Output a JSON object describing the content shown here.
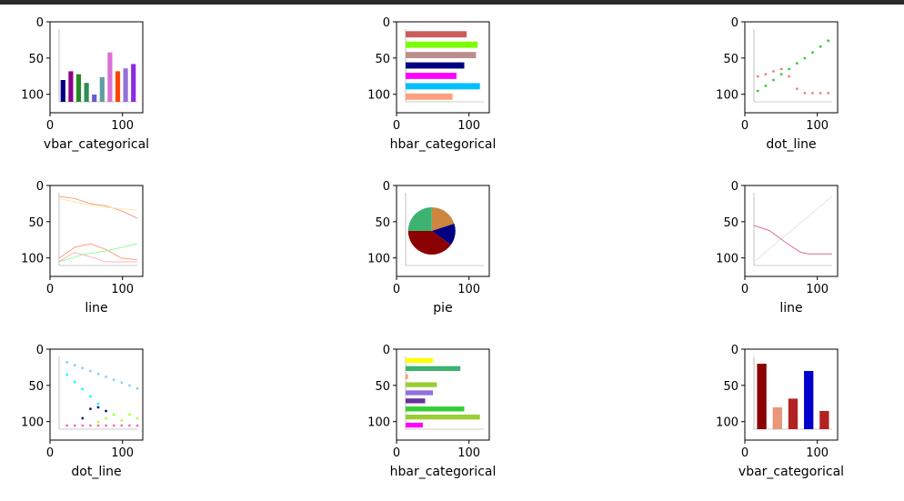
{
  "panels": [
    {
      "title": "vbar_categorical",
      "xticks": [
        "0",
        "100"
      ],
      "yticks": [
        "0",
        "50",
        "100"
      ],
      "thumb": {
        "type": "vbar",
        "bars": [
          {
            "value": 30,
            "color": "#000080"
          },
          {
            "value": 42,
            "color": "#8b008b"
          },
          {
            "value": 38,
            "color": "#228b22"
          },
          {
            "value": 26,
            "color": "#2e8b57"
          },
          {
            "value": 10,
            "color": "#6a5acd"
          },
          {
            "value": 34,
            "color": "#5f9ea0"
          },
          {
            "value": 68,
            "color": "#da70d6"
          },
          {
            "value": 42,
            "color": "#ff4500"
          },
          {
            "value": 46,
            "color": "#9370db"
          },
          {
            "value": 52,
            "color": "#8a2be2"
          }
        ]
      }
    },
    {
      "title": "hbar_categorical",
      "xticks": [
        "0",
        "100"
      ],
      "yticks": [
        "0",
        "50",
        "100"
      ],
      "thumb": {
        "type": "hbar",
        "bars": [
          {
            "value": 78,
            "color": "#cd5c5c"
          },
          {
            "value": 92,
            "color": "#7cfc00"
          },
          {
            "value": 90,
            "color": "#bc8f8f"
          },
          {
            "value": 75,
            "color": "#000080"
          },
          {
            "value": 65,
            "color": "#ff00ff"
          },
          {
            "value": 95,
            "color": "#00bfff"
          },
          {
            "value": 60,
            "color": "#ffa07a"
          }
        ]
      }
    },
    {
      "title": "dot_line",
      "xticks": [
        "0",
        "100"
      ],
      "yticks": [
        "0",
        "50",
        "100"
      ],
      "thumb": {
        "type": "dot",
        "series": [
          {
            "color": "#32cd32",
            "points": [
              [
                0.05,
                0.15
              ],
              [
                0.15,
                0.22
              ],
              [
                0.25,
                0.3
              ],
              [
                0.35,
                0.38
              ],
              [
                0.45,
                0.45
              ],
              [
                0.55,
                0.53
              ],
              [
                0.65,
                0.6
              ],
              [
                0.75,
                0.68
              ],
              [
                0.85,
                0.76
              ],
              [
                0.95,
                0.84
              ]
            ]
          },
          {
            "color": "#f08080",
            "points": [
              [
                0.05,
                0.35
              ],
              [
                0.15,
                0.38
              ],
              [
                0.25,
                0.42
              ],
              [
                0.35,
                0.45
              ],
              [
                0.45,
                0.35
              ],
              [
                0.55,
                0.18
              ],
              [
                0.65,
                0.12
              ],
              [
                0.75,
                0.12
              ],
              [
                0.85,
                0.12
              ],
              [
                0.95,
                0.12
              ]
            ]
          }
        ]
      }
    },
    {
      "title": "line",
      "xticks": [
        "0",
        "100"
      ],
      "yticks": [
        "0",
        "50",
        "100"
      ],
      "thumb": {
        "type": "line",
        "series": [
          {
            "color": "#f4a582",
            "points": [
              [
                0,
                0.95
              ],
              [
                0.2,
                0.92
              ],
              [
                0.4,
                0.85
              ],
              [
                0.6,
                0.82
              ],
              [
                0.8,
                0.75
              ],
              [
                1,
                0.65
              ]
            ]
          },
          {
            "color": "#ffe4b5",
            "points": [
              [
                0,
                0.92
              ],
              [
                0.3,
                0.85
              ],
              [
                0.6,
                0.8
              ],
              [
                1,
                0.76
              ]
            ]
          },
          {
            "color": "#ffa07a",
            "points": [
              [
                0,
                0.1
              ],
              [
                0.2,
                0.25
              ],
              [
                0.4,
                0.3
              ],
              [
                0.6,
                0.22
              ],
              [
                0.8,
                0.1
              ],
              [
                1,
                0.08
              ]
            ]
          },
          {
            "color": "#98fb98",
            "points": [
              [
                0,
                0.05
              ],
              [
                0.3,
                0.15
              ],
              [
                0.6,
                0.2
              ],
              [
                1,
                0.3
              ]
            ]
          },
          {
            "color": "#ffb6c1",
            "points": [
              [
                0,
                0.06
              ],
              [
                0.2,
                0.18
              ],
              [
                0.4,
                0.12
              ],
              [
                0.6,
                0.05
              ],
              [
                1,
                0.05
              ]
            ]
          }
        ]
      }
    },
    {
      "title": "pie",
      "xticks": [
        "0",
        "100"
      ],
      "yticks": [
        "0",
        "50",
        "100"
      ],
      "thumb": {
        "type": "pie",
        "slices": [
          {
            "value": 20,
            "color": "#cd853f"
          },
          {
            "value": 15,
            "color": "#000080"
          },
          {
            "value": 40,
            "color": "#8b0000"
          },
          {
            "value": 25,
            "color": "#3cb371"
          }
        ]
      }
    },
    {
      "title": "line",
      "xticks": [
        "0",
        "100"
      ],
      "yticks": [
        "0",
        "50",
        "100"
      ],
      "thumb": {
        "type": "line",
        "series": [
          {
            "color": "#e6e6e6",
            "points": [
              [
                0,
                0.05
              ],
              [
                1,
                0.95
              ]
            ]
          },
          {
            "color": "#db7093",
            "points": [
              [
                0,
                0.55
              ],
              [
                0.2,
                0.48
              ],
              [
                0.4,
                0.32
              ],
              [
                0.6,
                0.18
              ],
              [
                0.7,
                0.16
              ],
              [
                1,
                0.16
              ]
            ]
          }
        ]
      }
    },
    {
      "title": "dot_line",
      "xticks": [
        "0",
        "100"
      ],
      "yticks": [
        "0",
        "50",
        "100"
      ],
      "thumb": {
        "type": "dot",
        "series": [
          {
            "color": "#87cefa",
            "points": [
              [
                0.1,
                0.92
              ],
              [
                0.2,
                0.88
              ],
              [
                0.3,
                0.84
              ],
              [
                0.4,
                0.8
              ],
              [
                0.5,
                0.76
              ],
              [
                0.6,
                0.72
              ],
              [
                0.7,
                0.68
              ],
              [
                0.8,
                0.64
              ],
              [
                0.9,
                0.6
              ],
              [
                1,
                0.56
              ]
            ]
          },
          {
            "color": "#00ffff",
            "points": [
              [
                0.1,
                0.75
              ],
              [
                0.2,
                0.65
              ],
              [
                0.3,
                0.55
              ],
              [
                0.4,
                0.45
              ],
              [
                0.5,
                0.35
              ],
              [
                0.6,
                0.25
              ],
              [
                0.7,
                0.2
              ]
            ]
          },
          {
            "color": "#ff69b4",
            "points": [
              [
                0.1,
                0.05
              ],
              [
                0.2,
                0.05
              ],
              [
                0.3,
                0.05
              ],
              [
                0.4,
                0.05
              ],
              [
                0.5,
                0.05
              ],
              [
                0.6,
                0.05
              ],
              [
                0.7,
                0.05
              ],
              [
                0.8,
                0.05
              ],
              [
                0.9,
                0.05
              ],
              [
                1,
                0.05
              ]
            ]
          },
          {
            "color": "#191970",
            "points": [
              [
                0.3,
                0.15
              ],
              [
                0.4,
                0.28
              ],
              [
                0.5,
                0.3
              ],
              [
                0.6,
                0.25
              ]
            ]
          },
          {
            "color": "#adff2f",
            "points": [
              [
                0.5,
                0.1
              ],
              [
                0.6,
                0.15
              ],
              [
                0.7,
                0.2
              ],
              [
                0.8,
                0.12
              ],
              [
                0.9,
                0.2
              ],
              [
                1,
                0.15
              ]
            ]
          }
        ]
      }
    },
    {
      "title": "hbar_categorical",
      "xticks": [
        "0",
        "100"
      ],
      "yticks": [
        "0",
        "50",
        "100"
      ],
      "thumb": {
        "type": "hbar",
        "bars": [
          {
            "value": 35,
            "color": "#ffff00"
          },
          {
            "value": 70,
            "color": "#3cb371"
          },
          {
            "value": 3,
            "color": "#f4a460"
          },
          {
            "value": 40,
            "color": "#9acd32"
          },
          {
            "value": 35,
            "color": "#9370db"
          },
          {
            "value": 25,
            "color": "#663399"
          },
          {
            "value": 75,
            "color": "#32cd32"
          },
          {
            "value": 95,
            "color": "#9acd32"
          },
          {
            "value": 22,
            "color": "#ff00ff"
          }
        ]
      }
    },
    {
      "title": "vbar_categorical",
      "xticks": [
        "0",
        "100"
      ],
      "yticks": [
        "0",
        "50",
        "100"
      ],
      "thumb": {
        "type": "vbar",
        "bars": [
          {
            "value": 90,
            "color": "#8b0000"
          },
          {
            "value": 30,
            "color": "#e9967a"
          },
          {
            "value": 42,
            "color": "#b22222"
          },
          {
            "value": 80,
            "color": "#0000cd"
          },
          {
            "value": 25,
            "color": "#b22222"
          }
        ]
      }
    }
  ]
}
